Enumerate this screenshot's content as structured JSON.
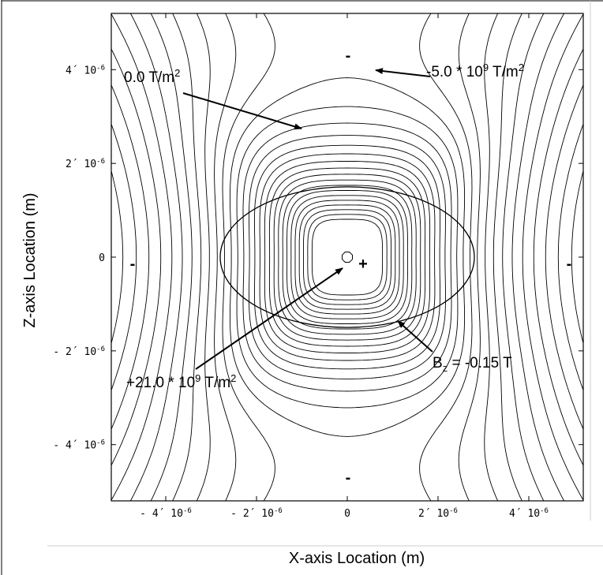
{
  "chart_data": {
    "type": "contour",
    "xlabel": "X-axis Location (m)",
    "ylabel": "Z-axis Location (m)",
    "xlim": [
      -5.2e-06,
      5.2e-06
    ],
    "ylim": [
      -5.2e-06,
      5.2e-06
    ],
    "x_ticks": [
      {
        "value": -4e-06,
        "label": "- 4´ 10",
        "exp": "-6"
      },
      {
        "value": -2e-06,
        "label": "- 2´ 10",
        "exp": "-6"
      },
      {
        "value": 0,
        "label": "0",
        "exp": ""
      },
      {
        "value": 2e-06,
        "label": "2´ 10",
        "exp": "-6"
      },
      {
        "value": 4e-06,
        "label": "4´ 10",
        "exp": "-6"
      }
    ],
    "y_ticks": [
      {
        "value": 4e-06,
        "label": "4´ 10",
        "exp": "-6"
      },
      {
        "value": 2e-06,
        "label": "2´ 10",
        "exp": "-6"
      },
      {
        "value": 0,
        "label": "0",
        "exp": ""
      },
      {
        "value": -2e-06,
        "label": "- 2´ 10",
        "exp": "-6"
      },
      {
        "value": -4e-06,
        "label": "- 4´ 10",
        "exp": "-6"
      }
    ],
    "annotations": {
      "zero_level": {
        "text": "0.0  T/m",
        "sup": "2"
      },
      "min_level": {
        "text": "-5.0 * 10",
        "sup": "9",
        "text2": " T/m",
        "sup2": "2"
      },
      "max_level": {
        "text": "+21.0 * 10",
        "sup": "9",
        "text2": " T/m",
        "sup2": "2"
      },
      "bz_contour": {
        "text": "B",
        "sub": "z",
        "text2": " = -0.15 T"
      }
    },
    "sign_markers": {
      "top": "-",
      "bottom": "-",
      "left": "-",
      "right": "-",
      "center": "+"
    },
    "ellipse_bz": {
      "cx": 0,
      "cz": 0,
      "rx": 2.8e-06,
      "rz": 1.5e-06
    },
    "contour_field": "quadrupole-like gradient dBz/dz, positive peak at origin, negative lobes on axes"
  }
}
